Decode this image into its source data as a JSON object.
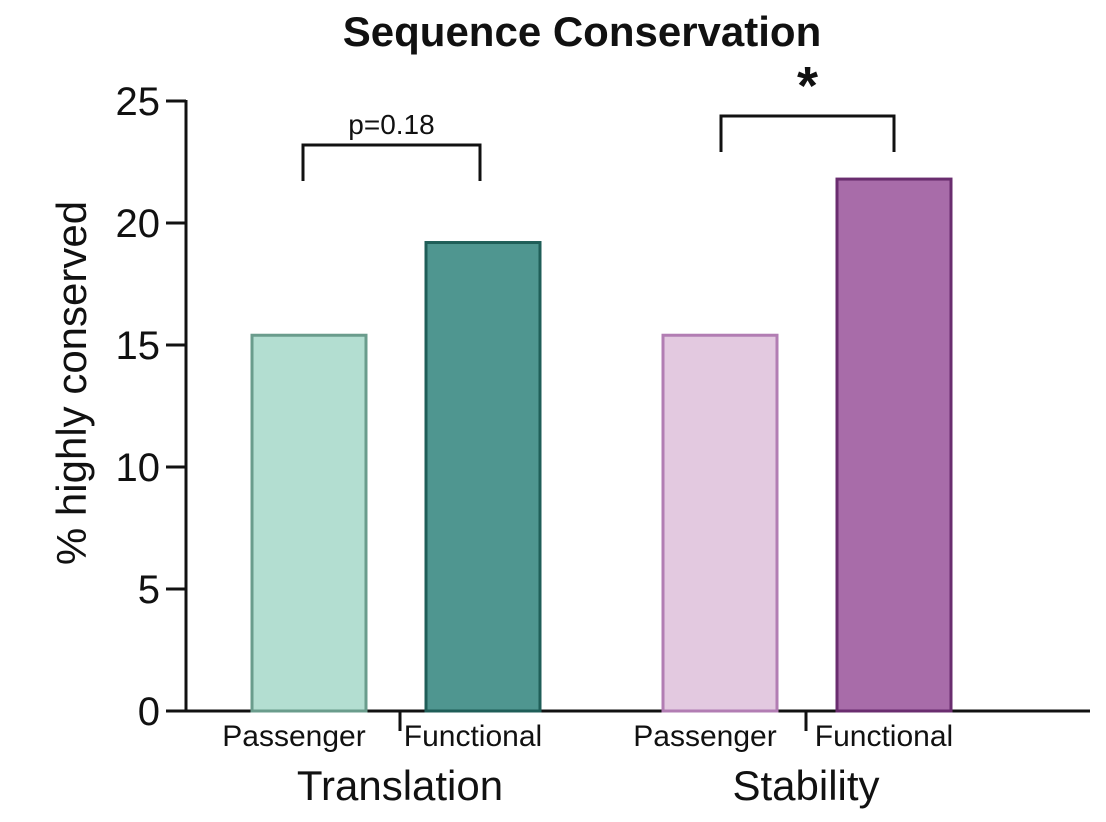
{
  "chart_data": {
    "type": "bar",
    "title": "Sequence Conservation",
    "ylabel": "% highly conserved",
    "ylim": [
      0,
      25
    ],
    "yticks": [
      0,
      5,
      10,
      15,
      20,
      25
    ],
    "grid": false,
    "groups": [
      {
        "name": "Translation",
        "bars": [
          {
            "label": "Passenger",
            "value": 15.4,
            "fill": "#b3ded1",
            "stroke": "#6a9c8c"
          },
          {
            "label": "Functional",
            "value": 19.2,
            "fill": "#4f9690",
            "stroke": "#1f5e58"
          }
        ],
        "significance": {
          "label": "p=0.18"
        }
      },
      {
        "name": "Stability",
        "bars": [
          {
            "label": "Passenger",
            "value": 15.4,
            "fill": "#e3c9e0",
            "stroke": "#b27db3"
          },
          {
            "label": "Functional",
            "value": 21.8,
            "fill": "#a86ca9",
            "stroke": "#6a2d6f"
          }
        ],
        "significance": {
          "label": "*"
        }
      }
    ]
  }
}
